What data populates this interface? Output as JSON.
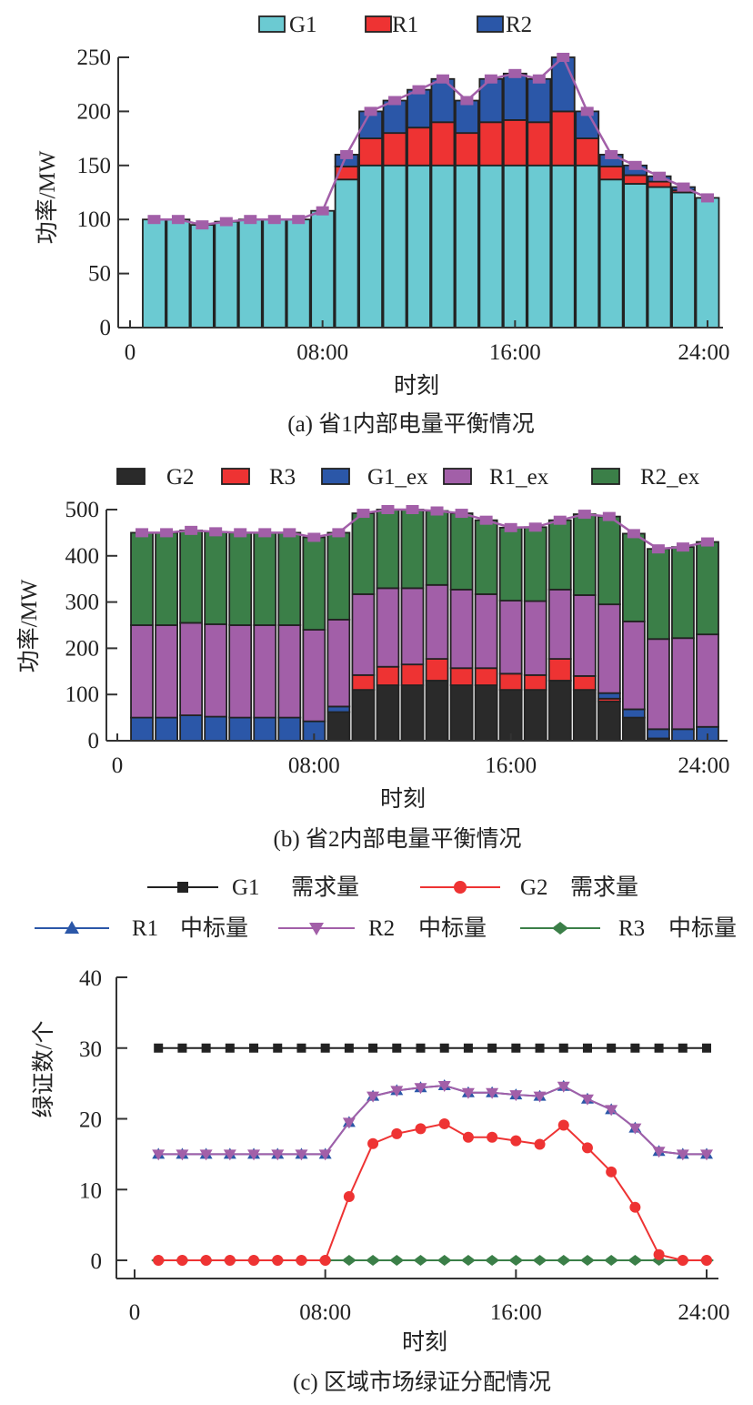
{
  "chart_data": [
    {
      "type": "bar",
      "stacked": true,
      "caption": "(a) 省1内部电量平衡情况",
      "xlabel": "时刻",
      "ylabel": "功率/MW",
      "ylim": [
        0,
        250
      ],
      "yticks": [
        0,
        50,
        100,
        150,
        200,
        250
      ],
      "xticks": [
        "0",
        "08:00",
        "16:00",
        "24:00"
      ],
      "xtick_hours": [
        0,
        8,
        16,
        24
      ],
      "hours": [
        1,
        2,
        3,
        4,
        5,
        6,
        7,
        8,
        9,
        10,
        11,
        12,
        13,
        14,
        15,
        16,
        17,
        18,
        19,
        20,
        21,
        22,
        23,
        24
      ],
      "legend_position": "top-center",
      "series": [
        {
          "name": "G1",
          "color": "#6bcad2",
          "values": [
            100,
            100,
            95,
            98,
            100,
            100,
            100,
            108,
            137,
            150,
            150,
            150,
            150,
            150,
            150,
            150,
            150,
            150,
            150,
            137,
            133,
            130,
            125,
            120
          ]
        },
        {
          "name": "R1",
          "color": "#ee3333",
          "values": [
            0,
            0,
            0,
            0,
            0,
            0,
            0,
            0,
            12,
            25,
            30,
            35,
            40,
            30,
            40,
            42,
            40,
            50,
            25,
            12,
            8,
            5,
            2,
            0
          ]
        },
        {
          "name": "R2",
          "color": "#2b57a8",
          "values": [
            0,
            0,
            0,
            0,
            0,
            0,
            0,
            0,
            11,
            25,
            30,
            35,
            40,
            30,
            40,
            43,
            40,
            50,
            25,
            11,
            9,
            5,
            3,
            0
          ]
        }
      ],
      "line": {
        "name": "total",
        "color": "#a25fa8",
        "values": [
          100,
          100,
          95,
          98,
          100,
          100,
          100,
          108,
          160,
          200,
          210,
          220,
          230,
          210,
          230,
          235,
          230,
          250,
          200,
          160,
          150,
          140,
          130,
          120
        ]
      }
    },
    {
      "type": "bar",
      "stacked": true,
      "caption": "(b) 省2内部电量平衡情况",
      "xlabel": "时刻",
      "ylabel": "功率/MW",
      "ylim": [
        0,
        500
      ],
      "yticks": [
        0,
        100,
        200,
        300,
        400,
        500
      ],
      "xticks": [
        "0",
        "08:00",
        "16:00",
        "24:00"
      ],
      "xtick_hours": [
        0,
        8,
        16,
        24
      ],
      "hours": [
        1,
        2,
        3,
        4,
        5,
        6,
        7,
        8,
        9,
        10,
        11,
        12,
        13,
        14,
        15,
        16,
        17,
        18,
        19,
        20,
        21,
        22,
        23,
        24
      ],
      "legend_position": "top-center",
      "series": [
        {
          "name": "G2",
          "color": "#2a2a2a",
          "values": [
            0,
            0,
            0,
            0,
            0,
            0,
            0,
            0,
            62,
            110,
            120,
            120,
            130,
            120,
            120,
            110,
            110,
            130,
            110,
            85,
            50,
            5,
            0,
            0
          ]
        },
        {
          "name": "R3",
          "color": "#ee3333",
          "values": [
            0,
            0,
            0,
            0,
            0,
            0,
            0,
            0,
            0,
            32,
            40,
            45,
            47,
            37,
            37,
            35,
            32,
            47,
            30,
            6,
            0,
            0,
            0,
            0
          ]
        },
        {
          "name": "G1_ex",
          "color": "#2b57a8",
          "values": [
            50,
            50,
            55,
            52,
            50,
            50,
            50,
            42,
            12,
            0,
            0,
            0,
            0,
            0,
            0,
            0,
            0,
            0,
            0,
            12,
            18,
            20,
            25,
            30
          ]
        },
        {
          "name": "R1_ex",
          "color": "#a25fa8",
          "values": [
            200,
            200,
            200,
            200,
            200,
            200,
            200,
            198,
            188,
            175,
            170,
            165,
            160,
            170,
            160,
            158,
            160,
            150,
            175,
            192,
            190,
            195,
            197,
            200
          ]
        },
        {
          "name": "R2_ex",
          "color": "#3b7f48",
          "values": [
            200,
            200,
            200,
            200,
            200,
            200,
            200,
            200,
            188,
            175,
            170,
            170,
            160,
            165,
            160,
            158,
            160,
            150,
            175,
            190,
            190,
            195,
            197,
            200
          ]
        }
      ],
      "line": {
        "name": "total",
        "color": "#a25fa8",
        "values": [
          450,
          450,
          455,
          452,
          450,
          450,
          450,
          440,
          450,
          492,
          500,
          500,
          497,
          492,
          477,
          461,
          462,
          477,
          490,
          485,
          448,
          415,
          419,
          430
        ]
      }
    },
    {
      "type": "line",
      "caption": "(c) 区域市场绿证分配情况",
      "xlabel": "时刻",
      "ylabel": "绿证数/个",
      "ylim": [
        0,
        40
      ],
      "yticks": [
        0,
        10,
        20,
        30,
        40
      ],
      "xticks": [
        "0",
        "08:00",
        "16:00",
        "24:00"
      ],
      "xtick_hours": [
        0,
        8,
        16,
        24
      ],
      "hours": [
        1,
        2,
        3,
        4,
        5,
        6,
        7,
        8,
        9,
        10,
        11,
        12,
        13,
        14,
        15,
        16,
        17,
        18,
        19,
        20,
        21,
        22,
        23,
        24
      ],
      "legend_position": "top-center",
      "series": [
        {
          "name": "G1",
          "label_suffix": "需求量",
          "color": "#222222",
          "marker": "square",
          "values": [
            30,
            30,
            30,
            30,
            30,
            30,
            30,
            30,
            30,
            30,
            30,
            30,
            30,
            30,
            30,
            30,
            30,
            30,
            30,
            30,
            30,
            30,
            30,
            30
          ]
        },
        {
          "name": "G2",
          "label_suffix": "需求量",
          "color": "#ee3333",
          "marker": "circle",
          "values": [
            0,
            0,
            0,
            0,
            0,
            0,
            0,
            0,
            9,
            16.5,
            17.9,
            18.6,
            19.3,
            17.4,
            17.4,
            16.9,
            16.4,
            19.1,
            15.9,
            12.5,
            7.5,
            0.8,
            0,
            0
          ]
        },
        {
          "name": "R1",
          "label_suffix": "中标量",
          "color": "#2b57a8",
          "marker": "triangle-up",
          "values": [
            15,
            15,
            15,
            15,
            15,
            15,
            15,
            15,
            19.5,
            23.2,
            24,
            24.4,
            24.7,
            23.7,
            23.7,
            23.4,
            23.2,
            24.6,
            22.8,
            21.3,
            18.7,
            15.4,
            15,
            15
          ]
        },
        {
          "name": "R2",
          "label_suffix": "中标量",
          "color": "#a25fa8",
          "marker": "triangle-down",
          "values": [
            15,
            15,
            15,
            15,
            15,
            15,
            15,
            15,
            19.5,
            23.2,
            24,
            24.4,
            24.7,
            23.7,
            23.7,
            23.4,
            23.2,
            24.6,
            22.8,
            21.3,
            18.7,
            15.4,
            15,
            15
          ]
        },
        {
          "name": "R3",
          "label_suffix": "中标量",
          "color": "#3b7f48",
          "marker": "diamond",
          "values": [
            0,
            0,
            0,
            0,
            0,
            0,
            0,
            0,
            0,
            0,
            0,
            0,
            0,
            0,
            0,
            0,
            0,
            0,
            0,
            0,
            0,
            0,
            0,
            0
          ]
        }
      ]
    }
  ]
}
